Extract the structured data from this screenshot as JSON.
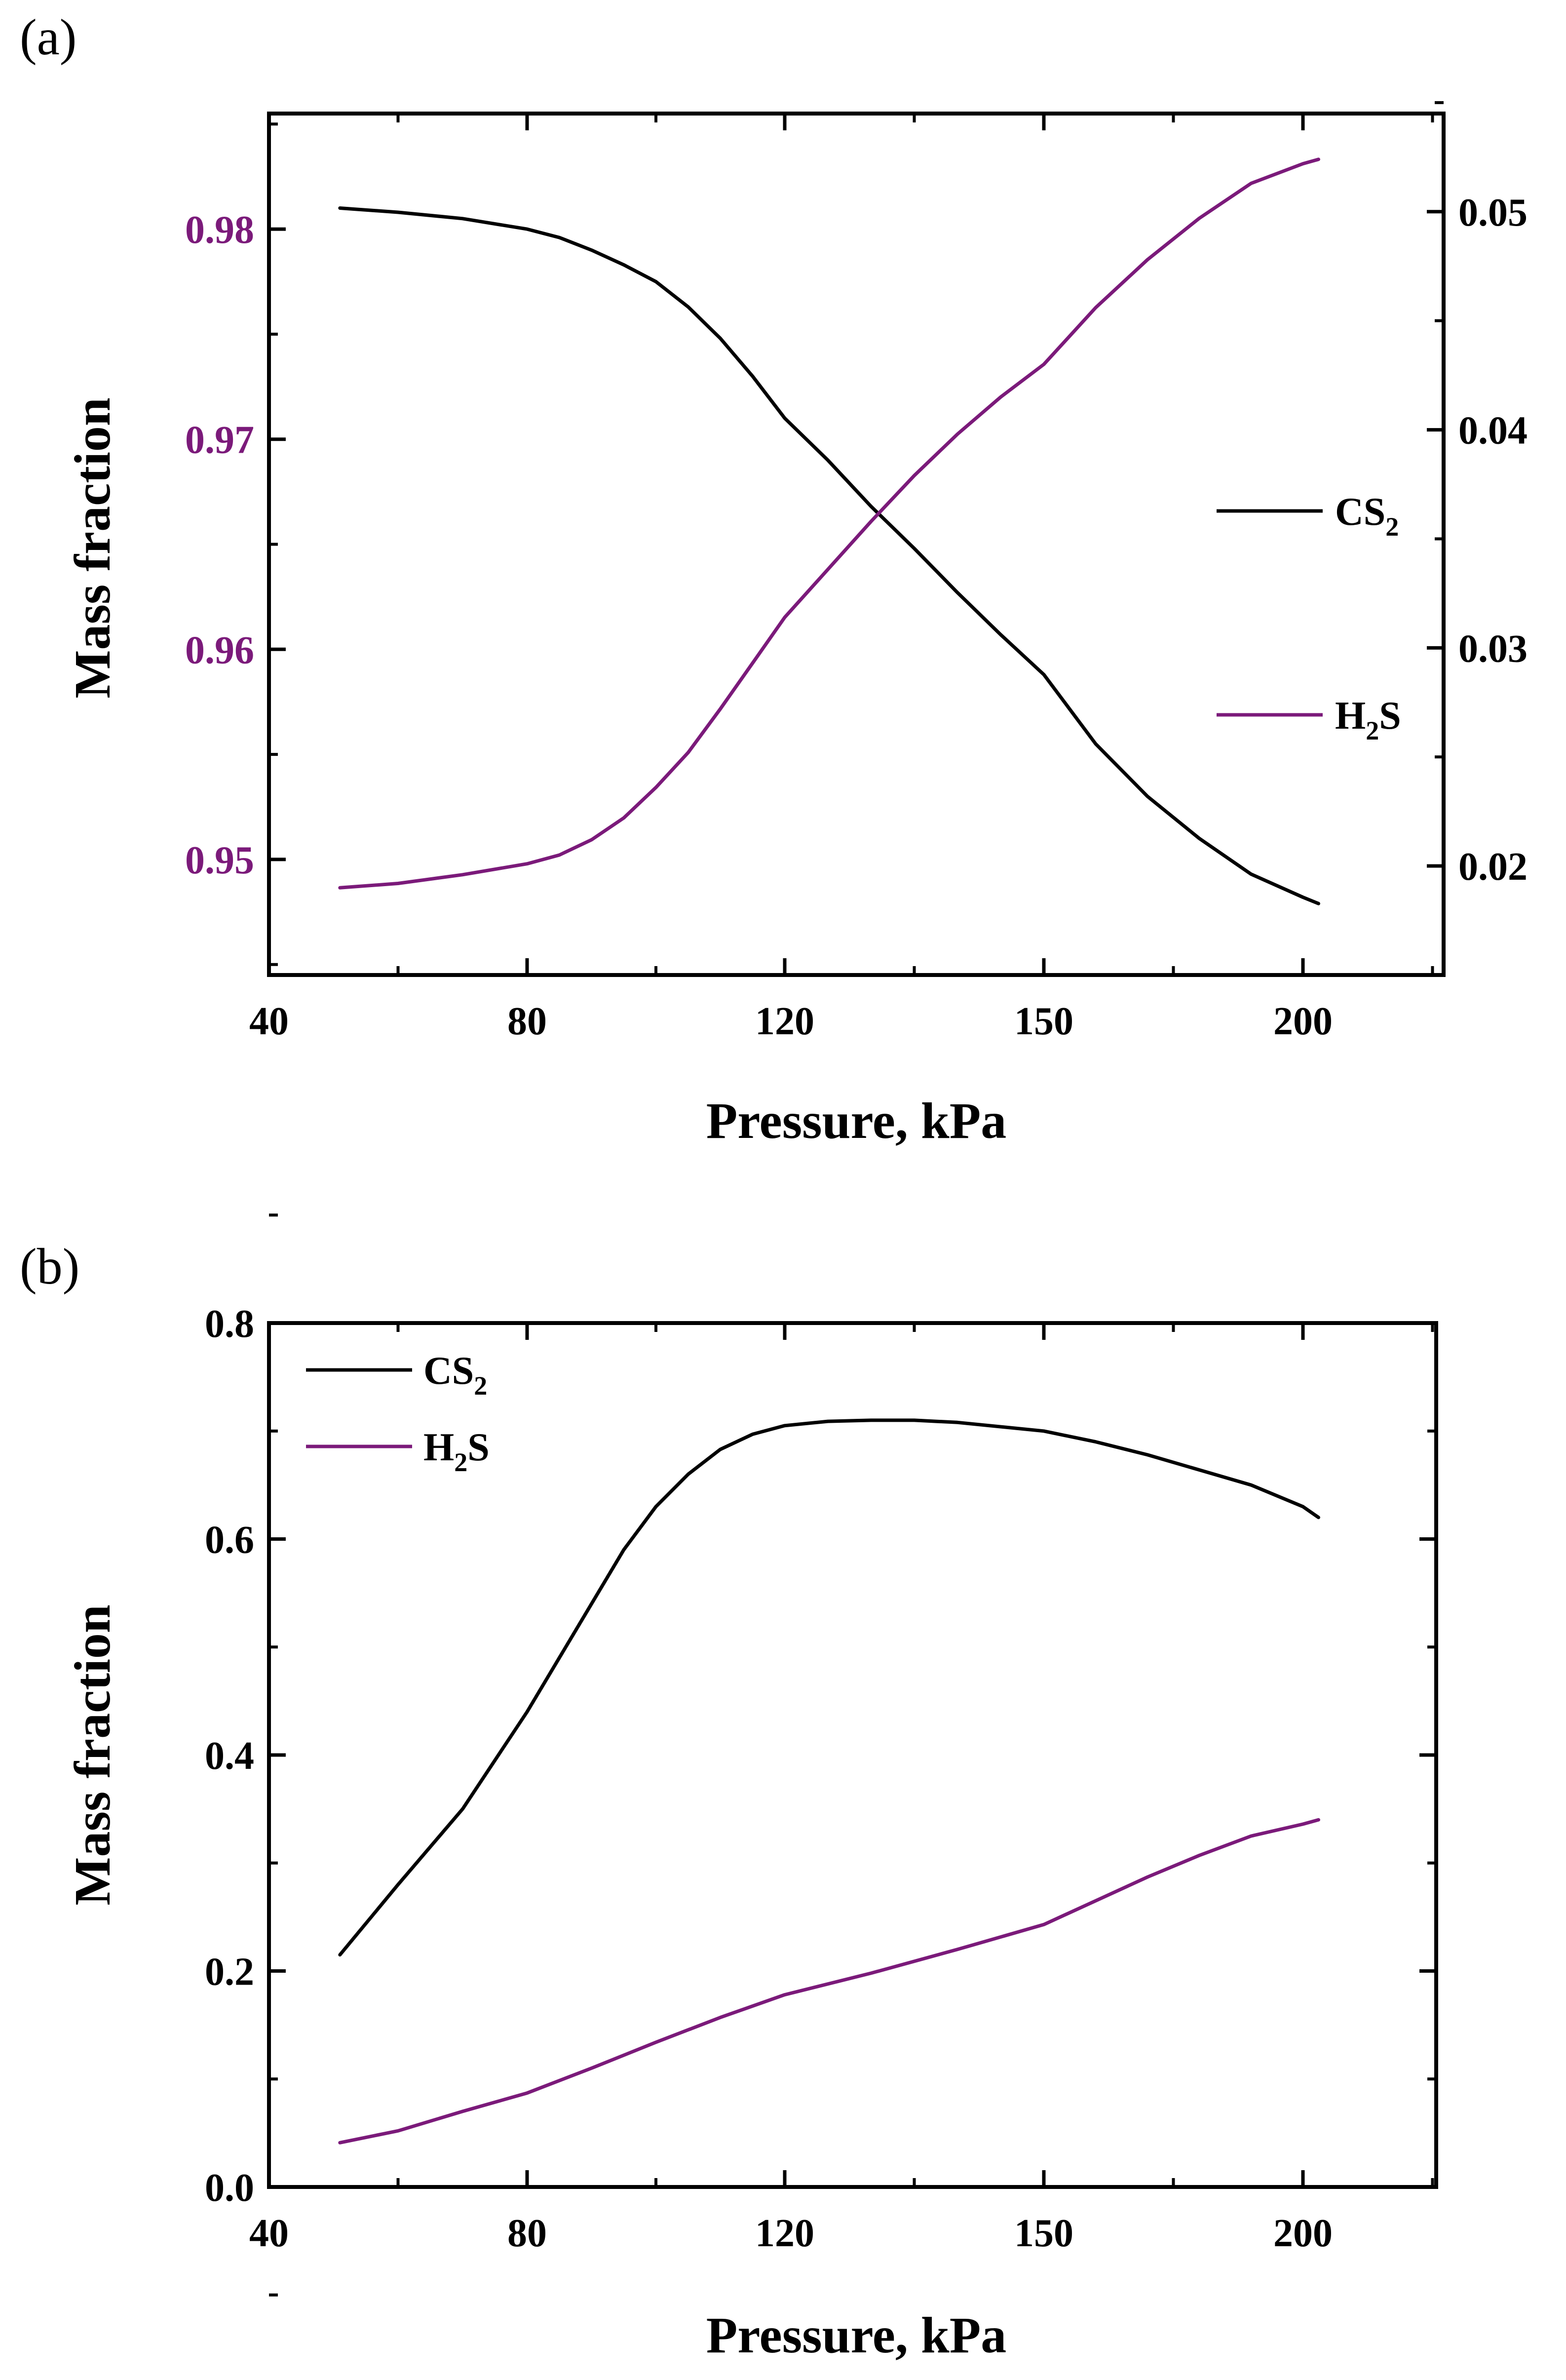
{
  "colors": {
    "cs2": "#000000",
    "h2s": "#7b1a7a",
    "left_axis_a": "#7b1a7a",
    "axis": "#000000"
  },
  "chart_data": [
    {
      "panel_label": "(a)",
      "type": "line",
      "xlabel": "Pressure, kPa",
      "ylabel": "Mass fraction",
      "x_ticks": [
        "40",
        "80",
        "120",
        "150",
        "200"
      ],
      "y_ticks_left": [
        "0.95",
        "0.96",
        "0.97",
        "0.98"
      ],
      "y_ticks_right": [
        "0.02",
        "0.03",
        "0.04",
        "0.05"
      ],
      "y_left_range": [
        0.9445,
        0.9855
      ],
      "y_right_range": [
        0.015,
        0.0545
      ],
      "legend": {
        "position": "center-right",
        "entries": [
          {
            "base": "CS",
            "sub": "2",
            "tail": ""
          },
          {
            "base": "H",
            "sub": "2",
            "tail": "S"
          }
        ]
      },
      "series": [
        {
          "name": "CS2",
          "axis": "left",
          "x": [
            51,
            60,
            70,
            80,
            85,
            90,
            95,
            100,
            105,
            110,
            115,
            120,
            125,
            130,
            135,
            140,
            145,
            150,
            160,
            170,
            180,
            190,
            200,
            203
          ],
          "values": [
            0.981,
            0.9808,
            0.9805,
            0.98,
            0.9796,
            0.979,
            0.9783,
            0.9775,
            0.9763,
            0.9748,
            0.973,
            0.971,
            0.969,
            0.9668,
            0.9648,
            0.9627,
            0.9607,
            0.9588,
            0.9555,
            0.953,
            0.951,
            0.9493,
            0.9482,
            0.9479
          ]
        },
        {
          "name": "H2S",
          "axis": "right",
          "x": [
            51,
            60,
            70,
            80,
            85,
            90,
            95,
            100,
            105,
            110,
            115,
            120,
            125,
            130,
            135,
            140,
            145,
            150,
            160,
            170,
            180,
            190,
            200,
            203
          ],
          "values": [
            0.019,
            0.0192,
            0.0196,
            0.0201,
            0.0205,
            0.0212,
            0.0222,
            0.0236,
            0.0252,
            0.0272,
            0.0293,
            0.0314,
            0.0336,
            0.0358,
            0.0379,
            0.0398,
            0.0415,
            0.043,
            0.0456,
            0.0478,
            0.0497,
            0.0513,
            0.0522,
            0.0524
          ]
        }
      ]
    },
    {
      "panel_label": "(b)",
      "type": "line",
      "xlabel": "Pressure, kPa",
      "ylabel": "Mass fraction",
      "x_ticks": [
        "40",
        "80",
        "120",
        "150",
        "200"
      ],
      "y_ticks_left": [
        "0.0",
        "0.2",
        "0.4",
        "0.6",
        "0.8"
      ],
      "y_left_range": [
        0.0,
        0.8
      ],
      "legend": {
        "position": "top-left",
        "entries": [
          {
            "base": "CS",
            "sub": "2",
            "tail": ""
          },
          {
            "base": "H",
            "sub": "2",
            "tail": "S"
          }
        ]
      },
      "series": [
        {
          "name": "CS2",
          "axis": "left",
          "x": [
            51,
            60,
            70,
            80,
            85,
            90,
            95,
            100,
            105,
            110,
            115,
            120,
            125,
            130,
            135,
            140,
            150,
            160,
            170,
            180,
            190,
            200,
            203
          ],
          "values": [
            0.215,
            0.28,
            0.35,
            0.44,
            0.49,
            0.54,
            0.59,
            0.63,
            0.66,
            0.683,
            0.697,
            0.705,
            0.709,
            0.71,
            0.71,
            0.708,
            0.7,
            0.69,
            0.678,
            0.664,
            0.65,
            0.63,
            0.62
          ]
        },
        {
          "name": "H2S",
          "axis": "left",
          "x": [
            51,
            60,
            70,
            80,
            90,
            100,
            110,
            120,
            130,
            140,
            150,
            160,
            170,
            180,
            190,
            200,
            203
          ],
          "values": [
            0.041,
            0.052,
            0.07,
            0.087,
            0.11,
            0.134,
            0.157,
            0.178,
            0.198,
            0.22,
            0.243,
            0.265,
            0.287,
            0.307,
            0.325,
            0.336,
            0.34
          ]
        }
      ]
    }
  ]
}
